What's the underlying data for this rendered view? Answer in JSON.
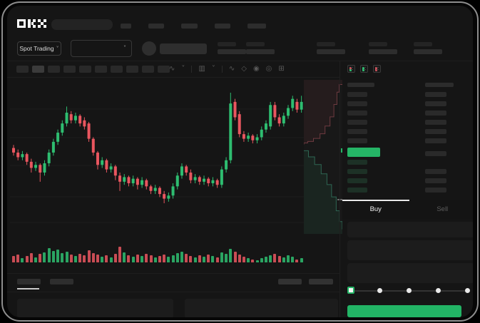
{
  "app": {
    "logo_label": "OKX"
  },
  "topnav": {
    "search_placeholder": "",
    "nav_placeholder_count": 5
  },
  "ticker": {
    "market_selector_label": "Spot Trading",
    "dropdown_chevron": "˅",
    "stat_placeholder_count": 5
  },
  "toolbar": {
    "tab_placeholder_count": 10,
    "active_tab_index": 1,
    "icons": [
      {
        "name": "indicator-icon",
        "glyph": "∿"
      },
      {
        "name": "chevron-down-icon",
        "glyph": "˅"
      },
      {
        "name": "divider",
        "glyph": ""
      },
      {
        "name": "candle-style-icon",
        "glyph": "▥"
      },
      {
        "name": "chevron-down-icon",
        "glyph": "˅"
      },
      {
        "name": "divider",
        "glyph": ""
      },
      {
        "name": "line-tool-icon",
        "glyph": "∿"
      },
      {
        "name": "compare-icon",
        "glyph": "◇"
      },
      {
        "name": "camera-icon",
        "glyph": "◉"
      },
      {
        "name": "settings-icon",
        "glyph": "◎"
      },
      {
        "name": "fullscreen-icon",
        "glyph": "⊞"
      }
    ]
  },
  "chart_data": {
    "type": "candlestick",
    "title": "",
    "grid": "horizontal-faint",
    "axes_labels_visible": false,
    "price_range": [
      0,
      100
    ],
    "ohlc_format": "[open, close, high, low] normalized 0-100",
    "candles": [
      [
        58,
        55,
        60,
        53
      ],
      [
        55,
        52,
        57,
        50
      ],
      [
        52,
        54,
        56,
        50
      ],
      [
        54,
        49,
        55,
        47
      ],
      [
        49,
        45,
        51,
        42
      ],
      [
        45,
        47,
        49,
        43
      ],
      [
        47,
        42,
        48,
        36
      ],
      [
        42,
        48,
        50,
        40
      ],
      [
        48,
        55,
        57,
        46
      ],
      [
        55,
        62,
        64,
        53
      ],
      [
        62,
        68,
        70,
        60
      ],
      [
        68,
        74,
        76,
        66
      ],
      [
        74,
        81,
        85,
        72
      ],
      [
        80,
        76,
        82,
        74
      ],
      [
        76,
        79,
        81,
        74
      ],
      [
        79,
        74,
        80,
        72
      ],
      [
        76,
        72,
        78,
        70
      ],
      [
        74,
        64,
        75,
        62
      ],
      [
        64,
        55,
        65,
        53
      ],
      [
        55,
        47,
        56,
        44
      ],
      [
        47,
        50,
        52,
        45
      ],
      [
        50,
        44,
        51,
        42
      ],
      [
        44,
        46,
        48,
        42
      ],
      [
        46,
        40,
        47,
        37
      ],
      [
        40,
        36,
        42,
        30
      ],
      [
        36,
        39,
        41,
        34
      ],
      [
        39,
        35,
        40,
        33
      ],
      [
        35,
        38,
        40,
        33
      ],
      [
        38,
        34,
        39,
        31
      ],
      [
        34,
        37,
        39,
        32
      ],
      [
        37,
        33,
        38,
        31
      ],
      [
        33,
        30,
        34,
        28
      ],
      [
        30,
        32,
        34,
        28
      ],
      [
        32,
        28,
        33,
        26
      ],
      [
        28,
        25,
        30,
        22
      ],
      [
        25,
        27,
        29,
        23
      ],
      [
        27,
        33,
        35,
        25
      ],
      [
        33,
        40,
        42,
        31
      ],
      [
        40,
        46,
        48,
        38
      ],
      [
        46,
        42,
        47,
        40
      ],
      [
        42,
        37,
        44,
        35
      ],
      [
        37,
        39,
        41,
        35
      ],
      [
        39,
        36,
        40,
        34
      ],
      [
        36,
        38,
        40,
        34
      ],
      [
        38,
        35,
        39,
        33
      ],
      [
        35,
        37,
        39,
        33
      ],
      [
        37,
        34,
        38,
        32
      ],
      [
        34,
        44,
        46,
        32
      ],
      [
        44,
        50,
        52,
        42
      ],
      [
        50,
        87,
        94,
        48
      ],
      [
        88,
        78,
        90,
        76
      ],
      [
        80,
        67,
        82,
        65
      ],
      [
        67,
        64,
        69,
        62
      ],
      [
        64,
        66,
        68,
        62
      ],
      [
        66,
        63,
        67,
        61
      ],
      [
        63,
        65,
        67,
        61
      ],
      [
        65,
        70,
        72,
        63
      ],
      [
        70,
        74,
        76,
        68
      ],
      [
        72,
        86,
        88,
        70
      ],
      [
        86,
        78,
        88,
        76
      ],
      [
        78,
        74,
        80,
        72
      ],
      [
        74,
        79,
        81,
        72
      ],
      [
        79,
        84,
        86,
        77
      ],
      [
        84,
        90,
        92,
        82
      ],
      [
        88,
        83,
        90,
        81
      ],
      [
        83,
        88,
        92,
        81
      ]
    ],
    "volume": [
      9,
      11,
      6,
      9,
      13,
      7,
      12,
      14,
      20,
      16,
      18,
      13,
      15,
      11,
      9,
      12,
      10,
      17,
      13,
      11,
      8,
      10,
      7,
      12,
      22,
      14,
      10,
      8,
      11,
      9,
      12,
      10,
      7,
      9,
      11,
      8,
      10,
      13,
      15,
      12,
      9,
      7,
      10,
      8,
      11,
      9,
      7,
      14,
      12,
      19,
      15,
      11,
      8,
      6,
      4,
      3,
      6,
      8,
      10,
      12,
      9,
      7,
      10,
      8,
      4,
      6
    ],
    "depth": {
      "asks": [
        [
          1,
          0.03
        ],
        [
          0.92,
          0.08
        ],
        [
          0.86,
          0.16
        ],
        [
          0.78,
          0.24
        ],
        [
          0.68,
          0.3
        ],
        [
          0.55,
          0.35
        ],
        [
          0.42,
          0.38
        ],
        [
          0.25,
          0.4
        ],
        [
          0.1,
          0.41
        ],
        [
          0,
          0.42
        ]
      ],
      "bids": [
        [
          0,
          0.46
        ],
        [
          0.12,
          0.5
        ],
        [
          0.28,
          0.55
        ],
        [
          0.45,
          0.61
        ],
        [
          0.6,
          0.68
        ],
        [
          0.72,
          0.76
        ],
        [
          0.84,
          0.85
        ],
        [
          0.93,
          0.92
        ],
        [
          1,
          0.97
        ]
      ]
    }
  },
  "orderbook": {
    "view_icons": [
      {
        "name": "book-all-icon",
        "left_mark": "red-green"
      },
      {
        "name": "book-buy-icon",
        "left_mark": "green"
      },
      {
        "name": "book-sell-icon",
        "left_mark": "red"
      }
    ],
    "ask_row_count": 6,
    "bid_row_count": 4,
    "last_price_row": "highlighted-green"
  },
  "trade_panel": {
    "tabs": [
      {
        "label": "Buy",
        "active": true
      },
      {
        "label": "Sell",
        "active": false
      }
    ],
    "field_count": 3,
    "slider_stops": [
      0,
      25,
      50,
      75,
      100
    ],
    "slider_value": 0,
    "submit_button": {
      "label": "",
      "color": "#22b465"
    }
  },
  "bottom_panel": {
    "tab_placeholder_count": 2,
    "active_tab_index": 0,
    "button_placeholder_count": 2,
    "panel_count": 2
  },
  "colors": {
    "background": "#151515",
    "bull_green": "#2ebd70",
    "bear_red": "#e9565f",
    "accent_green": "#25b566",
    "placeholder": "#2b2b2b",
    "text": "#e8e8e8",
    "text_dim": "#5d5d5d"
  }
}
